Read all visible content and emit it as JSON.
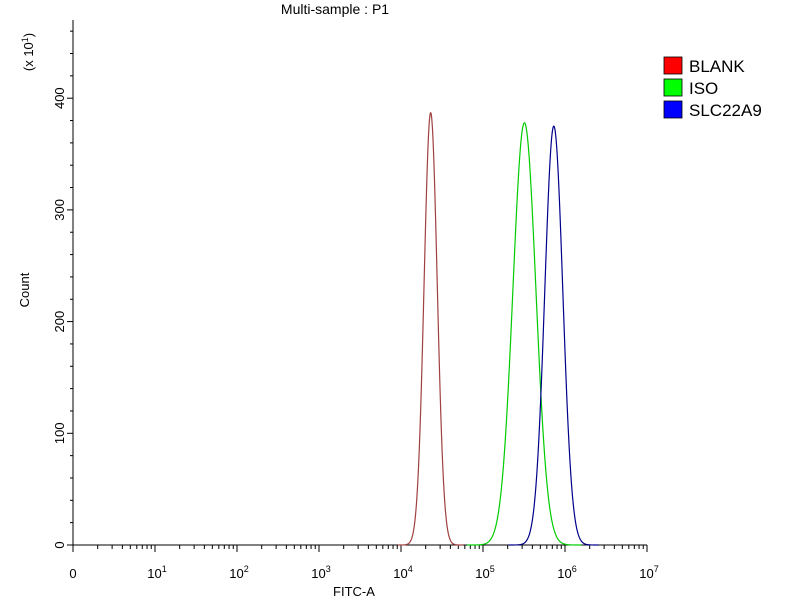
{
  "chart_data": {
    "type": "line",
    "title": "Multi-sample : P1",
    "xlabel": "FITC-A",
    "ylabel": "Count",
    "y_multiplier": "(x 10^1)",
    "y_multiplier_base": "(x 10",
    "y_multiplier_exp": "1",
    "y_multiplier_close": ")",
    "x_scale": "log",
    "xlim": [
      1,
      10000000
    ],
    "ylim": [
      0,
      470
    ],
    "x_ticks": [
      {
        "value": 1,
        "base": "0",
        "exp": ""
      },
      {
        "value": 10,
        "base": "10",
        "exp": "1"
      },
      {
        "value": 100,
        "base": "10",
        "exp": "2"
      },
      {
        "value": 1000,
        "base": "10",
        "exp": "3"
      },
      {
        "value": 10000,
        "base": "10",
        "exp": "4"
      },
      {
        "value": 100000,
        "base": "10",
        "exp": "5"
      },
      {
        "value": 1000000,
        "base": "10",
        "exp": "6"
      },
      {
        "value": 10000000,
        "base": "10",
        "exp": "7"
      }
    ],
    "y_ticks": [
      0,
      100,
      200,
      300,
      400
    ],
    "legend_position": "right",
    "grid": false,
    "series": [
      {
        "name": "BLANK",
        "color": "#a04040",
        "legend_color": "#ff0000",
        "peak_x": 23000,
        "peak_y": 387,
        "sigma_log10": 0.08,
        "x": [
          10000,
          14000,
          18000,
          21000,
          23000,
          26000,
          31000,
          38000,
          48000
        ],
        "y": [
          0,
          20,
          140,
          330,
          387,
          330,
          130,
          20,
          0
        ]
      },
      {
        "name": "ISO",
        "color": "#00cc00",
        "legend_color": "#00ff00",
        "peak_x": 320000,
        "peak_y": 378,
        "sigma_log10": 0.14,
        "x": [
          100000,
          160000,
          230000,
          290000,
          320000,
          370000,
          450000,
          560000,
          700000
        ],
        "y": [
          0,
          20,
          140,
          340,
          378,
          340,
          150,
          20,
          0
        ]
      },
      {
        "name": "SLC22A9",
        "color": "#00008b",
        "legend_color": "#0000ff",
        "peak_x": 730000,
        "peak_y": 375,
        "sigma_log10": 0.11,
        "x": [
          260000,
          400000,
          550000,
          670000,
          730000,
          810000,
          980000,
          1300000,
          1800000
        ],
        "y": [
          0,
          20,
          150,
          340,
          375,
          330,
          140,
          20,
          0
        ]
      }
    ]
  }
}
